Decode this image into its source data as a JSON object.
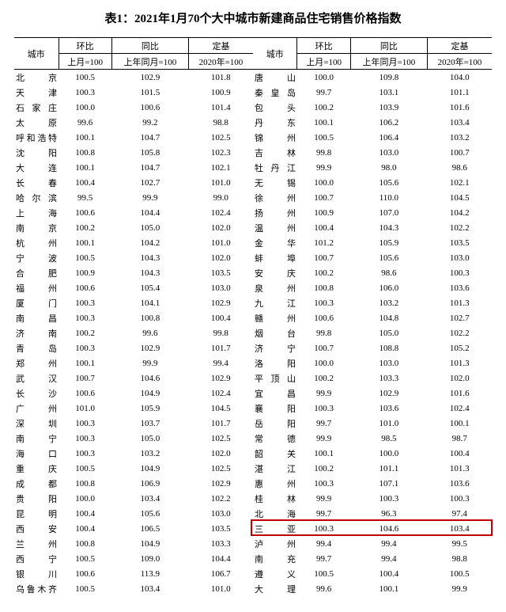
{
  "title": "表1：2021年1月70个大中城市新建商品住宅销售价格指数",
  "headers": {
    "city": "城市",
    "mom": "环比",
    "yoy": "同比",
    "base": "定基",
    "mom_sub": "上月=100",
    "yoy_sub": "上年同月=100",
    "base_sub": "2020年=100"
  },
  "highlight": {
    "color": "#c00000",
    "row_right_index": 30
  },
  "left": [
    {
      "city": "北京",
      "mom": "100.5",
      "yoy": "102.9",
      "base": "101.8"
    },
    {
      "city": "天津",
      "mom": "100.3",
      "yoy": "101.5",
      "base": "100.9"
    },
    {
      "city": "石家庄",
      "mom": "100.0",
      "yoy": "100.6",
      "base": "101.4"
    },
    {
      "city": "太原",
      "mom": "99.6",
      "yoy": "99.2",
      "base": "98.8"
    },
    {
      "city": "呼和浩特",
      "mom": "100.1",
      "yoy": "104.7",
      "base": "102.5"
    },
    {
      "city": "沈阳",
      "mom": "100.8",
      "yoy": "105.8",
      "base": "102.3"
    },
    {
      "city": "大连",
      "mom": "100.1",
      "yoy": "104.7",
      "base": "102.1"
    },
    {
      "city": "长春",
      "mom": "100.4",
      "yoy": "102.7",
      "base": "101.0"
    },
    {
      "city": "哈尔滨",
      "mom": "99.5",
      "yoy": "99.9",
      "base": "99.0"
    },
    {
      "city": "上海",
      "mom": "100.6",
      "yoy": "104.4",
      "base": "102.4"
    },
    {
      "city": "南京",
      "mom": "100.2",
      "yoy": "105.0",
      "base": "102.0"
    },
    {
      "city": "杭州",
      "mom": "100.1",
      "yoy": "104.2",
      "base": "101.0"
    },
    {
      "city": "宁波",
      "mom": "100.5",
      "yoy": "104.3",
      "base": "102.0"
    },
    {
      "city": "合肥",
      "mom": "100.9",
      "yoy": "104.3",
      "base": "103.5"
    },
    {
      "city": "福州",
      "mom": "100.6",
      "yoy": "105.4",
      "base": "103.0"
    },
    {
      "city": "厦门",
      "mom": "100.3",
      "yoy": "104.1",
      "base": "102.9"
    },
    {
      "city": "南昌",
      "mom": "100.3",
      "yoy": "100.8",
      "base": "100.4"
    },
    {
      "city": "济南",
      "mom": "100.2",
      "yoy": "99.6",
      "base": "99.8"
    },
    {
      "city": "青岛",
      "mom": "100.3",
      "yoy": "102.9",
      "base": "101.7"
    },
    {
      "city": "郑州",
      "mom": "100.1",
      "yoy": "99.9",
      "base": "99.4"
    },
    {
      "city": "武汉",
      "mom": "100.7",
      "yoy": "104.6",
      "base": "102.9"
    },
    {
      "city": "长沙",
      "mom": "100.6",
      "yoy": "104.9",
      "base": "102.4"
    },
    {
      "city": "广州",
      "mom": "101.0",
      "yoy": "105.9",
      "base": "104.5"
    },
    {
      "city": "深圳",
      "mom": "100.3",
      "yoy": "103.7",
      "base": "101.7"
    },
    {
      "city": "南宁",
      "mom": "100.3",
      "yoy": "105.0",
      "base": "102.5"
    },
    {
      "city": "海口",
      "mom": "100.3",
      "yoy": "103.2",
      "base": "102.0"
    },
    {
      "city": "重庆",
      "mom": "100.5",
      "yoy": "104.9",
      "base": "102.5"
    },
    {
      "city": "成都",
      "mom": "100.8",
      "yoy": "106.9",
      "base": "102.9"
    },
    {
      "city": "贵阳",
      "mom": "100.0",
      "yoy": "103.4",
      "base": "102.2"
    },
    {
      "city": "昆明",
      "mom": "100.4",
      "yoy": "105.6",
      "base": "103.0"
    },
    {
      "city": "西安",
      "mom": "100.4",
      "yoy": "106.5",
      "base": "103.5"
    },
    {
      "city": "兰州",
      "mom": "100.8",
      "yoy": "104.9",
      "base": "103.3"
    },
    {
      "city": "西宁",
      "mom": "100.5",
      "yoy": "109.0",
      "base": "104.4"
    },
    {
      "city": "银川",
      "mom": "100.6",
      "yoy": "113.9",
      "base": "106.7"
    },
    {
      "city": "乌鲁木齐",
      "mom": "100.5",
      "yoy": "103.4",
      "base": "101.0"
    }
  ],
  "right": [
    {
      "city": "唐山",
      "mom": "100.0",
      "yoy": "109.8",
      "base": "104.0"
    },
    {
      "city": "秦皇岛",
      "mom": "99.7",
      "yoy": "103.1",
      "base": "101.1"
    },
    {
      "city": "包头",
      "mom": "100.2",
      "yoy": "103.9",
      "base": "101.6"
    },
    {
      "city": "丹东",
      "mom": "100.1",
      "yoy": "106.2",
      "base": "103.4"
    },
    {
      "city": "锦州",
      "mom": "100.5",
      "yoy": "106.4",
      "base": "103.2"
    },
    {
      "city": "吉林",
      "mom": "99.8",
      "yoy": "103.0",
      "base": "100.7"
    },
    {
      "city": "牡丹江",
      "mom": "99.9",
      "yoy": "98.0",
      "base": "98.6"
    },
    {
      "city": "无锡",
      "mom": "100.0",
      "yoy": "105.6",
      "base": "102.1"
    },
    {
      "city": "徐州",
      "mom": "100.7",
      "yoy": "110.0",
      "base": "104.5"
    },
    {
      "city": "扬州",
      "mom": "100.9",
      "yoy": "107.0",
      "base": "104.2"
    },
    {
      "city": "温州",
      "mom": "100.4",
      "yoy": "104.3",
      "base": "102.2"
    },
    {
      "city": "金华",
      "mom": "101.2",
      "yoy": "105.9",
      "base": "103.5"
    },
    {
      "city": "蚌埠",
      "mom": "100.7",
      "yoy": "105.6",
      "base": "103.0"
    },
    {
      "city": "安庆",
      "mom": "100.2",
      "yoy": "98.6",
      "base": "100.3"
    },
    {
      "city": "泉州",
      "mom": "100.8",
      "yoy": "106.0",
      "base": "103.6"
    },
    {
      "city": "九江",
      "mom": "100.3",
      "yoy": "103.2",
      "base": "101.3"
    },
    {
      "city": "赣州",
      "mom": "100.6",
      "yoy": "104.8",
      "base": "102.7"
    },
    {
      "city": "烟台",
      "mom": "99.8",
      "yoy": "105.0",
      "base": "102.2"
    },
    {
      "city": "济宁",
      "mom": "100.7",
      "yoy": "108.8",
      "base": "105.2"
    },
    {
      "city": "洛阳",
      "mom": "100.0",
      "yoy": "103.0",
      "base": "101.3"
    },
    {
      "city": "平顶山",
      "mom": "100.2",
      "yoy": "103.3",
      "base": "102.0"
    },
    {
      "city": "宜昌",
      "mom": "99.9",
      "yoy": "102.9",
      "base": "101.6"
    },
    {
      "city": "襄阳",
      "mom": "100.3",
      "yoy": "103.6",
      "base": "102.4"
    },
    {
      "city": "岳阳",
      "mom": "99.7",
      "yoy": "101.0",
      "base": "100.1"
    },
    {
      "city": "常德",
      "mom": "99.9",
      "yoy": "98.5",
      "base": "98.7"
    },
    {
      "city": "韶关",
      "mom": "100.1",
      "yoy": "100.0",
      "base": "100.4"
    },
    {
      "city": "湛江",
      "mom": "100.2",
      "yoy": "101.1",
      "base": "101.3"
    },
    {
      "city": "惠州",
      "mom": "100.3",
      "yoy": "107.1",
      "base": "103.6"
    },
    {
      "city": "桂林",
      "mom": "99.9",
      "yoy": "100.3",
      "base": "100.3"
    },
    {
      "city": "北海",
      "mom": "99.7",
      "yoy": "96.3",
      "base": "97.4"
    },
    {
      "city": "三亚",
      "mom": "100.3",
      "yoy": "104.6",
      "base": "103.4"
    },
    {
      "city": "泸州",
      "mom": "99.4",
      "yoy": "99.4",
      "base": "99.5"
    },
    {
      "city": "南充",
      "mom": "99.7",
      "yoy": "99.4",
      "base": "98.8"
    },
    {
      "city": "遵义",
      "mom": "100.5",
      "yoy": "100.4",
      "base": "100.5"
    },
    {
      "city": "大理",
      "mom": "99.6",
      "yoy": "100.1",
      "base": "99.9"
    }
  ]
}
